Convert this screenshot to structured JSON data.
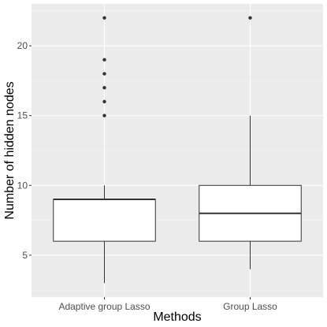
{
  "chart_data": {
    "type": "boxplot",
    "title": "",
    "xlabel": "Methods",
    "ylabel": "Number of hidden nodes",
    "categories": [
      "Adaptive group Lasso",
      "Group Lasso"
    ],
    "yticks": [
      5,
      10,
      15,
      20
    ],
    "ylim": [
      2,
      23
    ],
    "grid": true,
    "legend": "none",
    "boxes": [
      {
        "category": "Adaptive group Lasso",
        "whisker_low": 3,
        "q1": 6,
        "median": 9,
        "q3": 9,
        "whisker_high": 10,
        "outliers": [
          15,
          16,
          17,
          18,
          19,
          22
        ]
      },
      {
        "category": "Group Lasso",
        "whisker_low": 4,
        "q1": 6,
        "median": 8,
        "q3": 10,
        "whisker_high": 15,
        "outliers": [
          22
        ]
      }
    ],
    "colors": {
      "panel": "#ebebeb",
      "grid_major": "#ffffff",
      "box_fill": "#ffffff",
      "box_line": "#333333",
      "outlier": "#333333"
    }
  }
}
